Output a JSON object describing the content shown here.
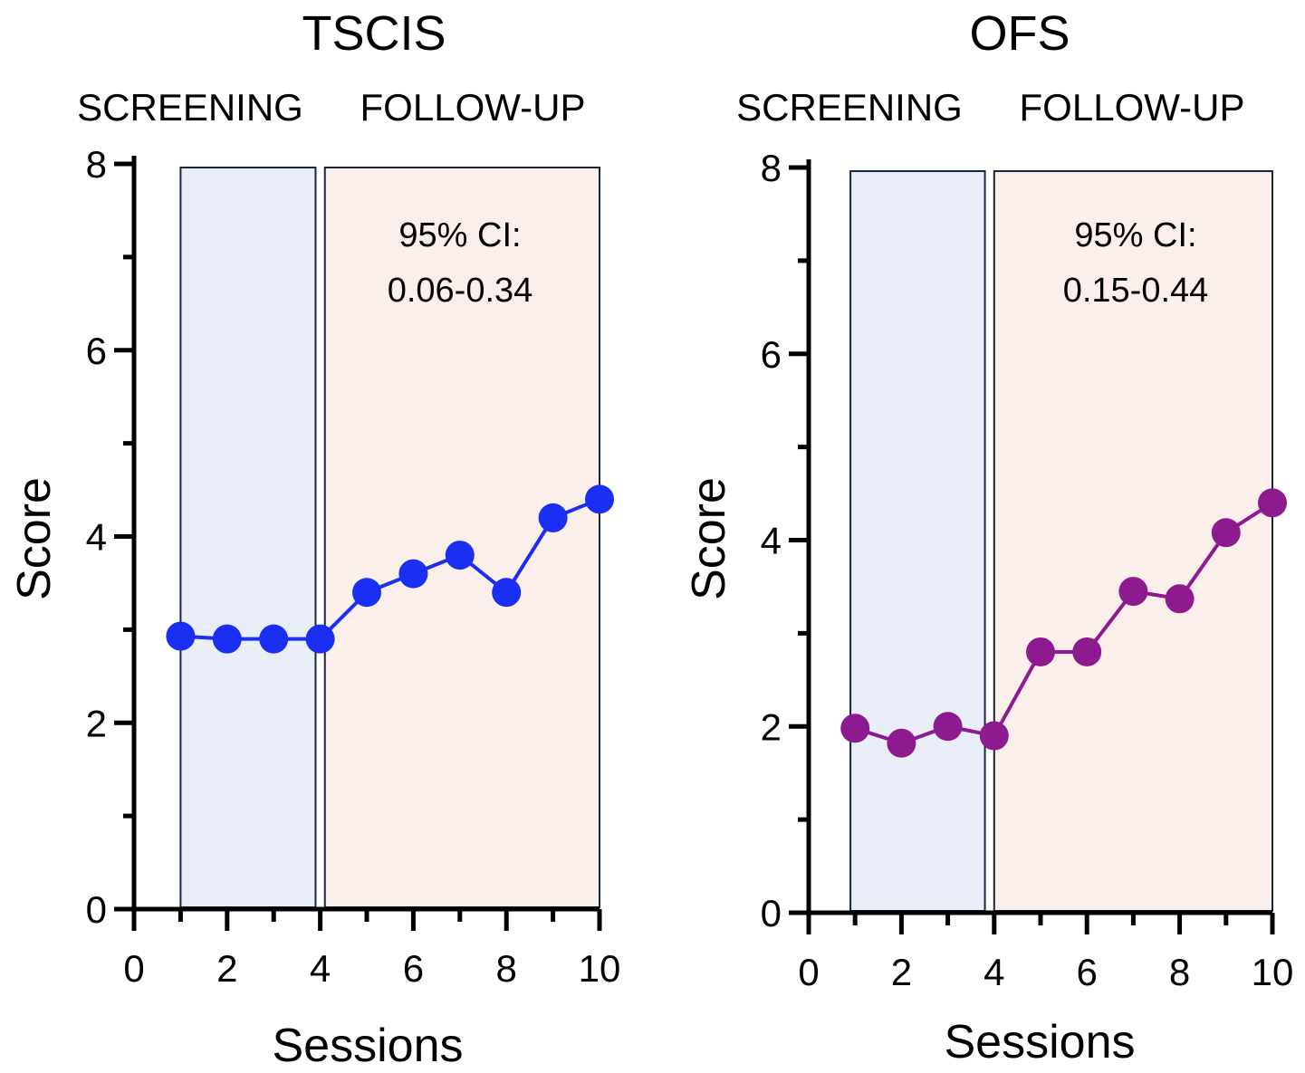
{
  "chart_data": [
    {
      "type": "line",
      "title": "TSCIS",
      "phase_labels": [
        "SCREENING",
        "FOLLOW-UP"
      ],
      "xlabel": "Sessions",
      "ylabel": "Score",
      "xlim": [
        0,
        10
      ],
      "ylim": [
        0,
        8
      ],
      "x_ticks": [
        "0",
        "2",
        "4",
        "6",
        "8",
        "10"
      ],
      "y_ticks": [
        "0",
        "2",
        "4",
        "6",
        "8"
      ],
      "x": [
        1,
        2,
        3,
        4,
        5,
        6,
        7,
        8,
        9,
        10
      ],
      "series": [
        {
          "name": "TSCIS",
          "color": "#1a2ff2",
          "values": [
            2.93,
            2.9,
            2.9,
            2.9,
            3.4,
            3.6,
            3.8,
            3.4,
            4.2,
            4.4
          ]
        }
      ],
      "phases": [
        {
          "name": "SCREENING",
          "x_range": [
            1,
            3.9
          ],
          "color": "#e9eef8"
        },
        {
          "name": "FOLLOW-UP",
          "x_range": [
            4.1,
            10
          ],
          "color": "#fbefeb"
        }
      ],
      "annotation": {
        "line1": "95% CI:",
        "line2": "0.06-0.34"
      }
    },
    {
      "type": "line",
      "title": "OFS",
      "phase_labels": [
        "SCREENING",
        "FOLLOW-UP"
      ],
      "xlabel": "Sessions",
      "ylabel": "Score",
      "xlim": [
        0,
        10
      ],
      "ylim": [
        0,
        8
      ],
      "x_ticks": [
        "0",
        "2",
        "4",
        "6",
        "8",
        "10"
      ],
      "y_ticks": [
        "0",
        "2",
        "4",
        "6",
        "8"
      ],
      "x": [
        1,
        2,
        3,
        4,
        5,
        6,
        7,
        8,
        9,
        10
      ],
      "series": [
        {
          "name": "OFS",
          "color": "#8e1a8f",
          "values": [
            1.98,
            1.82,
            2.0,
            1.9,
            2.8,
            2.8,
            3.45,
            3.37,
            4.08,
            4.4
          ]
        }
      ],
      "phases": [
        {
          "name": "SCREENING",
          "x_range": [
            0.9,
            3.8
          ],
          "color": "#e9eef8"
        },
        {
          "name": "FOLLOW-UP",
          "x_range": [
            4.0,
            10
          ],
          "color": "#fbefeb"
        }
      ],
      "annotation": {
        "line1": "95% CI:",
        "line2": "0.15-0.44"
      }
    }
  ]
}
